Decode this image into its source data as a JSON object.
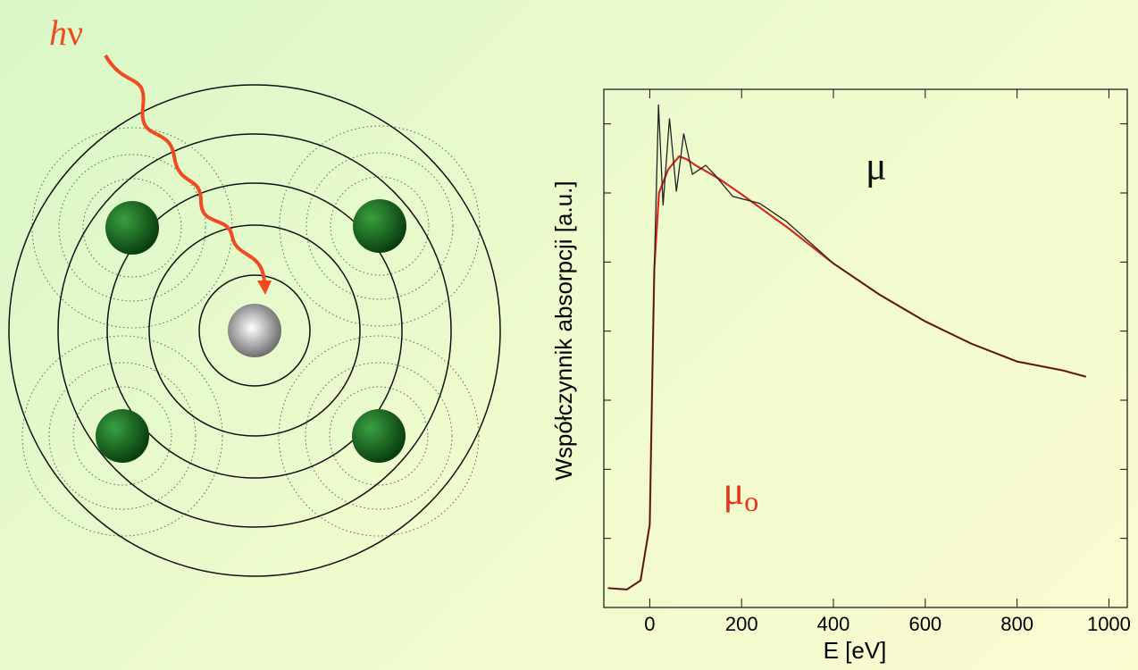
{
  "diagram": {
    "photon_label": {
      "italic": "h",
      "text": "ν"
    }
  },
  "chart_data": {
    "type": "line",
    "x_label": "E [eV]",
    "y_label": "Współczynnik absorpcji [a.u.]",
    "xlim": [
      -100,
      1040
    ],
    "xticks": [
      0,
      200,
      400,
      600,
      800,
      1000
    ],
    "ylim": [
      0,
      7.5
    ],
    "yticks": [
      1,
      2,
      3,
      4,
      5,
      6,
      7
    ],
    "series": [
      {
        "color": "#d8281e",
        "x": [
          -91,
          -50,
          -20,
          0,
          6,
          10,
          20,
          40,
          64,
          80,
          100,
          150,
          200,
          300,
          400,
          500,
          600,
          700,
          800,
          900,
          950
        ],
        "values": [
          0.28,
          0.26,
          0.39,
          1.2,
          3.5,
          4.9,
          6.0,
          6.34,
          6.53,
          6.49,
          6.4,
          6.21,
          5.98,
          5.5,
          4.98,
          4.53,
          4.14,
          3.82,
          3.56,
          3.43,
          3.34
        ]
      },
      {
        "color": "#222222",
        "x": [
          -91,
          -50,
          -20,
          0,
          6,
          10,
          19,
          29,
          43,
          58,
          74,
          93,
          122,
          142,
          181,
          239,
          297,
          400,
          500,
          600,
          700,
          800,
          900,
          950
        ],
        "values": [
          0.28,
          0.26,
          0.39,
          1.2,
          3.5,
          4.9,
          7.28,
          5.82,
          7.08,
          6.02,
          6.86,
          6.27,
          6.4,
          6.26,
          5.95,
          5.85,
          5.59,
          4.98,
          4.53,
          4.14,
          3.82,
          3.56,
          3.43,
          3.34
        ]
      }
    ],
    "annotations": [
      {
        "text": "μ",
        "color": "#111111",
        "x": 470,
        "y": 6.2
      },
      {
        "text": "μ",
        "sub": "o",
        "color": "#e8321e",
        "x": 160,
        "y": 1.5
      }
    ]
  }
}
